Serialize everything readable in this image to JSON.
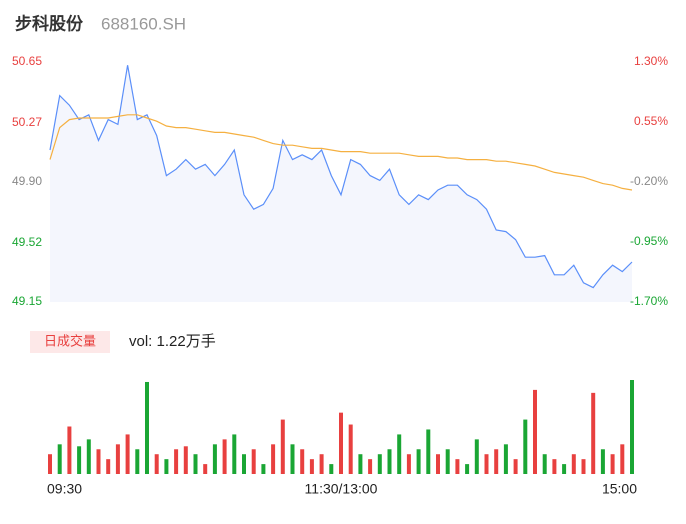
{
  "header": {
    "name": "步科股份",
    "code": "688160.SH"
  },
  "chart_data": [
    {
      "type": "line",
      "x": [
        0,
        4,
        8,
        12,
        16,
        20,
        24,
        28,
        32,
        36,
        40,
        44,
        48,
        52,
        56,
        60,
        64,
        68,
        72,
        76,
        80,
        84,
        88,
        92,
        96,
        100,
        104,
        108,
        112,
        116,
        120,
        124,
        128,
        132,
        136,
        140,
        144,
        148,
        152,
        156,
        160,
        164,
        168,
        172,
        176,
        180,
        184,
        188,
        192,
        196,
        200,
        204,
        208,
        212,
        216,
        220,
        224,
        228,
        232,
        236,
        240
      ],
      "xlim": [
        0,
        240
      ],
      "xticks": [
        {
          "value": 0,
          "label": "09:30"
        },
        {
          "value": 120,
          "label": "11:30/13:00"
        },
        {
          "value": 240,
          "label": "15:00"
        }
      ],
      "ylim": [
        49.15,
        50.65
      ],
      "yticks": [
        50.65,
        50.27,
        {
          "value": 49.9,
          "label": "49.90"
        },
        49.52,
        49.15
      ],
      "ytick_colors": [
        "#e8403f",
        "#e8403f",
        "#888888",
        "#1aa634",
        "#1aa634"
      ],
      "y2lim": [
        -1.7,
        1.3
      ],
      "y2ticks": [
        {
          "value": 1.3,
          "label": "1.30%"
        },
        {
          "value": 0.55,
          "label": "0.55%"
        },
        {
          "value": -0.2,
          "label": "-0.20%"
        },
        {
          "value": -0.95,
          "label": "-0.95%"
        },
        {
          "value": -1.7,
          "label": "-1.70%"
        }
      ],
      "series": [
        {
          "color": "#5b8ff9",
          "area_color": "#f4f6fd",
          "values": [
            50.1,
            50.44,
            50.38,
            50.29,
            50.32,
            50.16,
            50.29,
            50.26,
            50.63,
            50.29,
            50.32,
            50.19,
            49.94,
            49.98,
            50.04,
            49.98,
            50.01,
            49.94,
            50.01,
            50.1,
            49.82,
            49.73,
            49.76,
            49.86,
            50.16,
            50.04,
            50.07,
            50.04,
            50.1,
            49.94,
            49.82,
            50.04,
            50.01,
            49.94,
            49.91,
            49.98,
            49.82,
            49.76,
            49.82,
            49.79,
            49.85,
            49.88,
            49.88,
            49.82,
            49.79,
            49.73,
            49.6,
            49.59,
            49.54,
            49.43,
            49.43,
            49.44,
            49.32,
            49.32,
            49.38,
            49.27,
            49.24,
            49.32,
            49.38,
            49.34,
            49.4
          ]
        },
        {
          "color": "#f5b041",
          "values": [
            50.04,
            50.24,
            50.29,
            50.3,
            50.3,
            50.3,
            50.3,
            50.31,
            50.32,
            50.32,
            50.3,
            50.28,
            50.25,
            50.24,
            50.24,
            50.23,
            50.22,
            50.21,
            50.21,
            50.2,
            50.19,
            50.18,
            50.16,
            50.14,
            50.13,
            50.13,
            50.12,
            50.11,
            50.11,
            50.1,
            50.09,
            50.09,
            50.09,
            50.08,
            50.08,
            50.08,
            50.08,
            50.07,
            50.06,
            50.06,
            50.06,
            50.05,
            50.05,
            50.04,
            50.04,
            50.04,
            50.03,
            50.03,
            50.02,
            50.01,
            50.0,
            49.98,
            49.96,
            49.95,
            49.94,
            49.93,
            49.91,
            49.89,
            49.88,
            49.86,
            49.85
          ]
        }
      ]
    },
    {
      "type": "bar",
      "title": "日成交量",
      "subtitle": "vol: 1.22万手",
      "values": [
        200,
        300,
        480,
        280,
        350,
        250,
        150,
        300,
        400,
        250,
        930,
        200,
        150,
        250,
        280,
        200,
        100,
        300,
        350,
        400,
        200,
        250,
        100,
        300,
        550,
        300,
        250,
        150,
        200,
        100,
        620,
        500,
        200,
        150,
        200,
        250,
        400,
        200,
        250,
        450,
        200,
        250,
        150,
        100,
        350,
        200,
        250,
        300,
        150,
        550,
        850,
        200,
        150,
        100,
        200,
        150,
        820,
        250,
        200,
        300,
        950
      ],
      "colors": [
        "#e8403f",
        "#1aa634",
        "#e8403f",
        "#1aa634",
        "#1aa634",
        "#e8403f",
        "#e8403f",
        "#e8403f",
        "#e8403f",
        "#1aa634",
        "#1aa634",
        "#e8403f",
        "#1aa634",
        "#e8403f",
        "#e8403f",
        "#1aa634",
        "#e8403f",
        "#1aa634",
        "#e8403f",
        "#1aa634",
        "#1aa634",
        "#e8403f",
        "#1aa634",
        "#e8403f",
        "#e8403f",
        "#1aa634",
        "#e8403f",
        "#e8403f",
        "#e8403f",
        "#1aa634",
        "#e8403f",
        "#e8403f",
        "#1aa634",
        "#e8403f",
        "#1aa634",
        "#1aa634",
        "#1aa634",
        "#e8403f",
        "#1aa634",
        "#1aa634",
        "#e8403f",
        "#1aa634",
        "#e8403f",
        "#1aa634",
        "#1aa634",
        "#e8403f",
        "#e8403f",
        "#1aa634",
        "#e8403f",
        "#1aa634",
        "#e8403f",
        "#1aa634",
        "#e8403f",
        "#1aa634",
        "#e8403f",
        "#e8403f",
        "#e8403f",
        "#1aa634",
        "#e8403f",
        "#e8403f",
        "#1aa634"
      ]
    }
  ]
}
